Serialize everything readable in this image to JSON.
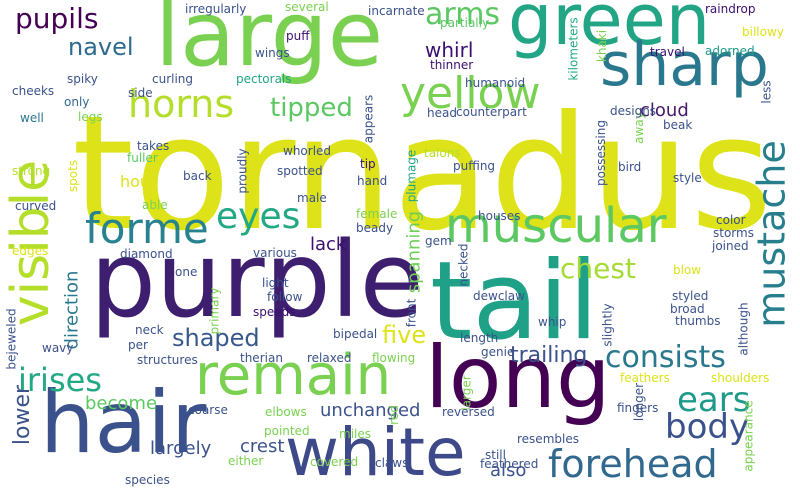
{
  "words": [
    {
      "text": "tornadus",
      "color": "#dde318"
    },
    {
      "text": "purple",
      "color": "#3e1e6f"
    },
    {
      "text": "tail",
      "color": "#1fa187"
    },
    {
      "text": "large",
      "color": "#7ad151"
    },
    {
      "text": "hair",
      "color": "#3b518b"
    },
    {
      "text": "long",
      "color": "#440154"
    },
    {
      "text": "green",
      "color": "#21a585"
    },
    {
      "text": "white",
      "color": "#3e4989"
    },
    {
      "text": "sharp",
      "color": "#2a788e"
    },
    {
      "text": "remain",
      "color": "#7ad151"
    },
    {
      "text": "visible",
      "color": "#b5de2b"
    },
    {
      "text": "muscular",
      "color": "#5cc863"
    },
    {
      "text": "forme",
      "color": "#26828e"
    },
    {
      "text": "yellow",
      "color": "#7ad151"
    },
    {
      "text": "mustache",
      "color": "#277f8e"
    },
    {
      "text": "forehead",
      "color": "#31688e"
    },
    {
      "text": "horns",
      "color": "#b5de2b"
    },
    {
      "text": "eyes",
      "color": "#22a884"
    },
    {
      "text": "irises",
      "color": "#22a884"
    },
    {
      "text": "ears",
      "color": "#1f9a8a"
    },
    {
      "text": "body",
      "color": "#3b518b"
    },
    {
      "text": "consists",
      "color": "#2a788e"
    },
    {
      "text": "arms",
      "color": "#5cc863"
    },
    {
      "text": "pupils",
      "color": "#440154"
    },
    {
      "text": "chest",
      "color": "#a5db36"
    },
    {
      "text": "tipped",
      "color": "#5cc863"
    },
    {
      "text": "navel",
      "color": "#2f6b8e"
    },
    {
      "text": "shaped",
      "color": "#38588c"
    },
    {
      "text": "five",
      "color": "#dde318"
    },
    {
      "text": "lower",
      "color": "#3b528b"
    },
    {
      "text": "trailing",
      "color": "#3b528b"
    },
    {
      "text": "whirl",
      "color": "#3b0f70"
    },
    {
      "text": "cloud",
      "color": "#48186a"
    },
    {
      "text": "lack",
      "color": "#3b0f70"
    },
    {
      "text": "spanning",
      "color": "#6ece58"
    },
    {
      "text": "direction",
      "color": "#2a788e"
    },
    {
      "text": "crest",
      "color": "#3b528b"
    },
    {
      "text": "largely",
      "color": "#3b528b"
    },
    {
      "text": "unchanged",
      "color": "#3b528b"
    },
    {
      "text": "become",
      "color": "#5cc863"
    },
    {
      "text": "also",
      "color": "#3b528b"
    },
    {
      "text": "hour",
      "color": "#dde318"
    },
    {
      "text": "irregularly",
      "color": "#3b528b"
    },
    {
      "text": "several",
      "color": "#7ad151"
    },
    {
      "text": "incarnate",
      "color": "#3b528b"
    },
    {
      "text": "partially",
      "color": "#5cc863"
    },
    {
      "text": "raindrop",
      "color": "#3b0f70"
    },
    {
      "text": "kilometers",
      "color": "#22a884"
    },
    {
      "text": "khaki",
      "color": "#7ad151"
    },
    {
      "text": "billowy",
      "color": "#dde318"
    },
    {
      "text": "puff",
      "color": "#3b0f70"
    },
    {
      "text": "wings",
      "color": "#3b528b"
    },
    {
      "text": "thinner",
      "color": "#3b0f70"
    },
    {
      "text": "travel",
      "color": "#3b0f70"
    },
    {
      "text": "adorned",
      "color": "#1f9a8a"
    },
    {
      "text": "spiky",
      "color": "#3b528b"
    },
    {
      "text": "curling",
      "color": "#3b528b"
    },
    {
      "text": "pectorals",
      "color": "#21a585"
    },
    {
      "text": "humanoid",
      "color": "#3b528b"
    },
    {
      "text": "side",
      "color": "#3b528b"
    },
    {
      "text": "cheeks",
      "color": "#3b528b"
    },
    {
      "text": "only",
      "color": "#31688e"
    },
    {
      "text": "legs",
      "color": "#7ad151"
    },
    {
      "text": "well",
      "color": "#2a788e"
    },
    {
      "text": "appears",
      "color": "#3b528b"
    },
    {
      "text": "head",
      "color": "#3b528b"
    },
    {
      "text": "counterpart",
      "color": "#3b528b"
    },
    {
      "text": "away",
      "color": "#7ad151"
    },
    {
      "text": "designs",
      "color": "#3b528b"
    },
    {
      "text": "beak",
      "color": "#3b528b"
    },
    {
      "text": "less",
      "color": "#3b528b"
    },
    {
      "text": "takes",
      "color": "#3b528b"
    },
    {
      "text": "fuller",
      "color": "#5cc863"
    },
    {
      "text": "proudly",
      "color": "#3b528b"
    },
    {
      "text": "whorled",
      "color": "#3b528b"
    },
    {
      "text": "tip",
      "color": "#3b0f70"
    },
    {
      "text": "talons",
      "color": "#b5de2b"
    },
    {
      "text": "possessing",
      "color": "#3b528b"
    },
    {
      "text": "bird",
      "color": "#3b528b"
    },
    {
      "text": "strong",
      "color": "#b5de2b"
    },
    {
      "text": "spots",
      "color": "#dde318"
    },
    {
      "text": "back",
      "color": "#3b528b"
    },
    {
      "text": "spotted",
      "color": "#3b528b"
    },
    {
      "text": "hand",
      "color": "#3b528b"
    },
    {
      "text": "puffing",
      "color": "#3b528b"
    },
    {
      "text": "plumage",
      "color": "#21a585"
    },
    {
      "text": "style",
      "color": "#3b528b"
    },
    {
      "text": "curved",
      "color": "#3b528b"
    },
    {
      "text": "able",
      "color": "#7ad151"
    },
    {
      "text": "male",
      "color": "#3b528b"
    },
    {
      "text": "color",
      "color": "#3b528b"
    },
    {
      "text": "storms",
      "color": "#3b528b"
    },
    {
      "text": "joined",
      "color": "#3b528b"
    },
    {
      "text": "houses",
      "color": "#3b528b"
    },
    {
      "text": "edges",
      "color": "#dde318"
    },
    {
      "text": "female",
      "color": "#7ad151"
    },
    {
      "text": "beady",
      "color": "#3b528b"
    },
    {
      "text": "gem",
      "color": "#3b528b"
    },
    {
      "text": "diamond",
      "color": "#3b528b"
    },
    {
      "text": "various",
      "color": "#3b528b"
    },
    {
      "text": "necked",
      "color": "#3b528b"
    },
    {
      "text": "one",
      "color": "#3b528b"
    },
    {
      "text": "light",
      "color": "#3b528b"
    },
    {
      "text": "blow",
      "color": "#dde318"
    },
    {
      "text": "primary",
      "color": "#7ad151"
    },
    {
      "text": "follow",
      "color": "#3b528b"
    },
    {
      "text": "dewclaw",
      "color": "#3b528b"
    },
    {
      "text": "styled",
      "color": "#3b528b"
    },
    {
      "text": "front",
      "color": "#3b528b"
    },
    {
      "text": "broad",
      "color": "#3b528b"
    },
    {
      "text": "neck",
      "color": "#3b528b"
    },
    {
      "text": "speeds",
      "color": "#3b0f70"
    },
    {
      "text": "bipedal",
      "color": "#3b528b"
    },
    {
      "text": "thumbs",
      "color": "#3b528b"
    },
    {
      "text": "although",
      "color": "#3b528b"
    },
    {
      "text": "bejeweled",
      "color": "#3b528b"
    },
    {
      "text": "per",
      "color": "#3b528b"
    },
    {
      "text": "whip",
      "color": "#3b528b"
    },
    {
      "text": "slightly",
      "color": "#3b528b"
    },
    {
      "text": "wavy",
      "color": "#3b528b"
    },
    {
      "text": "length",
      "color": "#3b528b"
    },
    {
      "text": "genie",
      "color": "#3b528b"
    },
    {
      "text": "structures",
      "color": "#3b528b"
    },
    {
      "text": "therian",
      "color": "#3b528b"
    },
    {
      "text": "relaxed",
      "color": "#3b528b"
    },
    {
      "text": "flowing",
      "color": "#7ad151"
    },
    {
      "text": "feathers",
      "color": "#dde318"
    },
    {
      "text": "shoulders",
      "color": "#dde318"
    },
    {
      "text": "coarse",
      "color": "#3b528b"
    },
    {
      "text": "elbows",
      "color": "#7ad151"
    },
    {
      "text": "larger",
      "color": "#7ad151"
    },
    {
      "text": "longer",
      "color": "#3b528b"
    },
    {
      "text": "appearance",
      "color": "#7ad151"
    },
    {
      "text": "pointed",
      "color": "#7ad151"
    },
    {
      "text": "miles",
      "color": "#7ad151"
    },
    {
      "text": "reversed",
      "color": "#3b528b"
    },
    {
      "text": "fingers",
      "color": "#3b528b"
    },
    {
      "text": "resembles",
      "color": "#3b528b"
    },
    {
      "text": "either",
      "color": "#7ad151"
    },
    {
      "text": "red",
      "color": "#7ad151"
    },
    {
      "text": "still",
      "color": "#3b528b"
    },
    {
      "text": "species",
      "color": "#3b528b"
    },
    {
      "text": "covered",
      "color": "#7ad151"
    },
    {
      "text": "claws",
      "color": "#3b528b"
    },
    {
      "text": "feathered",
      "color": "#3b528b"
    }
  ]
}
